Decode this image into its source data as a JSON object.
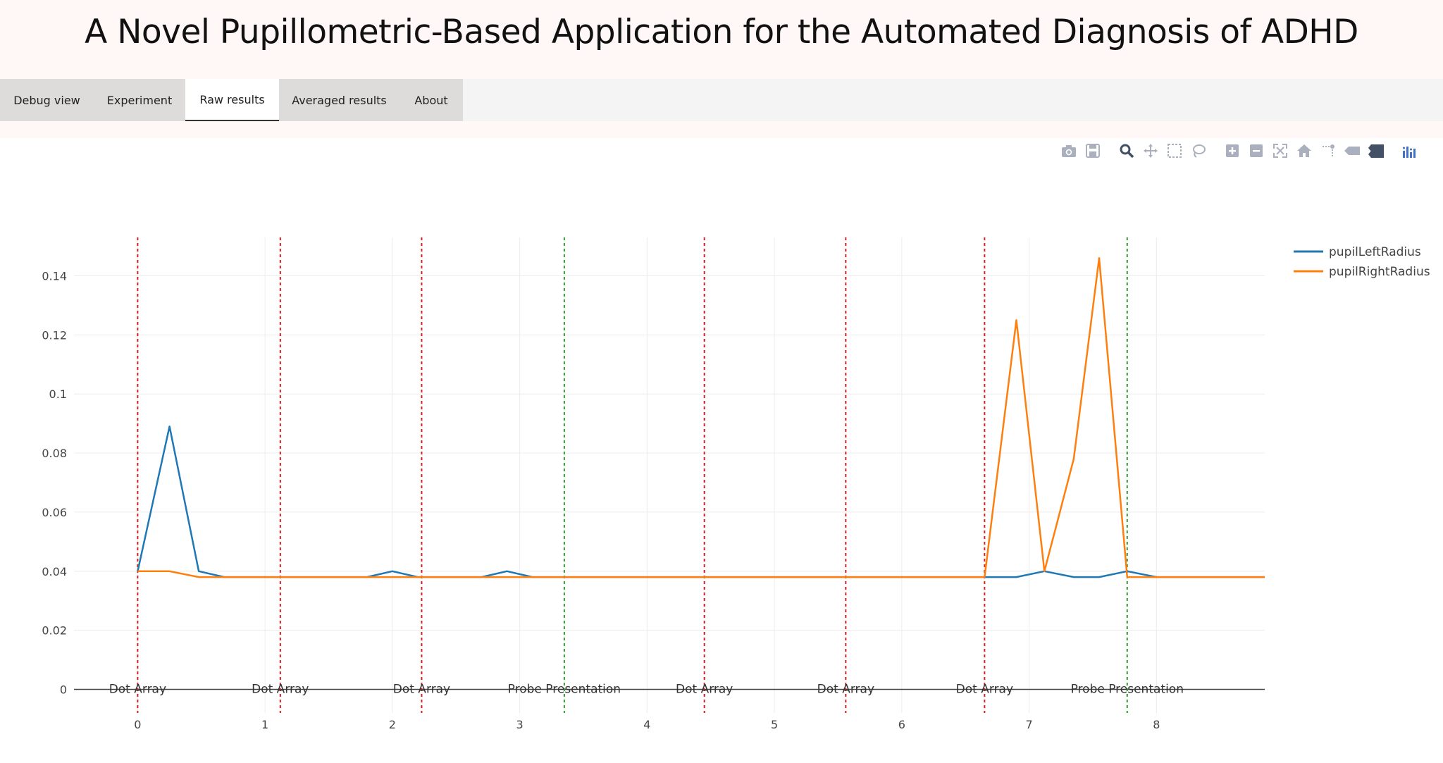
{
  "app": {
    "title": "A Novel Pupillometric-Based Application for the Automated Diagnosis of ADHD"
  },
  "tabs": [
    {
      "label": "Debug view",
      "active": false
    },
    {
      "label": "Experiment",
      "active": false
    },
    {
      "label": "Raw results",
      "active": true
    },
    {
      "label": "Averaged results",
      "active": false
    },
    {
      "label": "About",
      "active": false
    }
  ],
  "toolbar": {
    "icons": [
      "camera-icon",
      "save-icon",
      "zoom-icon",
      "pan-icon",
      "box-select-icon",
      "lasso-select-icon",
      "zoom-in-icon",
      "zoom-out-icon",
      "autoscale-icon",
      "reset-axes-icon",
      "spike-lines-icon",
      "hover-closest-icon",
      "hover-compare-icon",
      "plotly-logo-icon"
    ]
  },
  "colors": {
    "left": "#1f77b4",
    "right": "#ff7f0e",
    "dot_array_line": "#e31a1c",
    "probe_line": "#2ca02c",
    "tab_bar": "#dedcdb"
  },
  "chart_data": {
    "type": "line",
    "title": "",
    "xlabel": "",
    "ylabel": "",
    "xlim": [
      -0.5,
      8.85
    ],
    "ylim": [
      -0.008,
      0.153
    ],
    "xticks": [
      0,
      1,
      2,
      3,
      4,
      5,
      6,
      7,
      8
    ],
    "yticks": [
      0,
      0.02,
      0.04,
      0.06,
      0.08,
      0.1,
      0.12,
      0.14
    ],
    "ytick_labels": [
      "0",
      "0.02",
      "0.04",
      "0.06",
      "0.08",
      "0.1",
      "0.12",
      "0.14"
    ],
    "grid": true,
    "legend_position": "top-right",
    "series": [
      {
        "name": "pupilLeftRadius",
        "color": "#1f77b4",
        "x": [
          0,
          0.25,
          0.48,
          0.68,
          1.8,
          2.0,
          2.2,
          2.7,
          2.9,
          3.1,
          3.35,
          6.7,
          6.9,
          7.12,
          7.35,
          7.55,
          7.77,
          8.0,
          8.85
        ],
        "y": [
          0.04,
          0.089,
          0.04,
          0.038,
          0.038,
          0.04,
          0.038,
          0.038,
          0.04,
          0.038,
          0.038,
          0.038,
          0.038,
          0.04,
          0.038,
          0.038,
          0.04,
          0.038,
          0.038
        ]
      },
      {
        "name": "pupilRightRadius",
        "color": "#ff7f0e",
        "x": [
          0,
          0.25,
          0.48,
          0.68,
          6.65,
          6.9,
          7.12,
          7.35,
          7.55,
          7.77,
          8.0,
          8.85
        ],
        "y": [
          0.04,
          0.04,
          0.038,
          0.038,
          0.038,
          0.125,
          0.04,
          0.078,
          0.146,
          0.038,
          0.038,
          0.038
        ]
      }
    ],
    "markers": [
      {
        "x": 0.0,
        "label": "Dot Array",
        "color": "#e31a1c"
      },
      {
        "x": 1.12,
        "label": "Dot Array",
        "color": "#e31a1c"
      },
      {
        "x": 2.23,
        "label": "Dot Array",
        "color": "#e31a1c"
      },
      {
        "x": 3.35,
        "label": "Probe Presentation",
        "color": "#2ca02c"
      },
      {
        "x": 4.45,
        "label": "Dot Array",
        "color": "#e31a1c"
      },
      {
        "x": 5.56,
        "label": "Dot Array",
        "color": "#e31a1c"
      },
      {
        "x": 6.65,
        "label": "Dot Array",
        "color": "#e31a1c"
      },
      {
        "x": 7.77,
        "label": "Probe Presentation",
        "color": "#2ca02c"
      }
    ]
  }
}
